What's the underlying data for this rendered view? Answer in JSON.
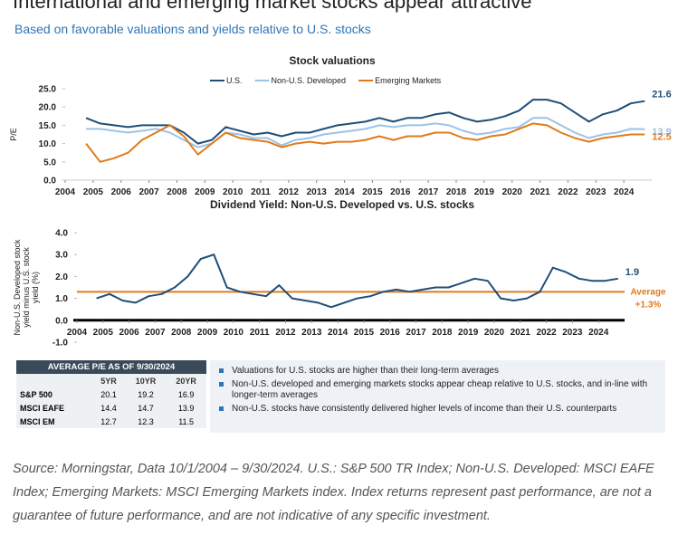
{
  "header": {
    "title": "International and emerging market stocks appear attractive",
    "subtitle": "Based on favorable valuations and yields relative to U.S. stocks"
  },
  "chart_data": [
    {
      "type": "line",
      "title": "Stock valuations",
      "ylabel": [
        "P/E"
      ],
      "legend": "top",
      "end_labels": true,
      "zero_line": false,
      "x": [
        2004.75,
        2005.25,
        2005.75,
        2006.25,
        2006.75,
        2007.25,
        2007.75,
        2008.25,
        2008.75,
        2009.25,
        2009.75,
        2010.25,
        2010.75,
        2011.25,
        2011.75,
        2012.25,
        2012.75,
        2013.25,
        2013.75,
        2014.25,
        2014.75,
        2015.25,
        2015.75,
        2016.25,
        2016.75,
        2017.25,
        2017.75,
        2018.25,
        2018.75,
        2019.25,
        2019.75,
        2020.25,
        2020.75,
        2021.25,
        2021.75,
        2022.25,
        2022.75,
        2023.25,
        2023.75,
        2024.25,
        2024.75
      ],
      "xlim": [
        2004,
        2025
      ],
      "xticks": [
        2004,
        2005,
        2006,
        2007,
        2008,
        2009,
        2010,
        2011,
        2012,
        2013,
        2014,
        2015,
        2016,
        2017,
        2018,
        2019,
        2020,
        2021,
        2022,
        2023,
        2024
      ],
      "ylim": [
        0,
        25
      ],
      "yticks": [
        {
          "value": 0,
          "label": "0.0"
        },
        {
          "value": 5,
          "label": "5.0"
        },
        {
          "value": 10,
          "label": "10.0"
        },
        {
          "value": 15,
          "label": "15.0"
        },
        {
          "value": 20,
          "label": "20.0"
        },
        {
          "value": 25,
          "label": "25.0"
        }
      ],
      "series": [
        {
          "name": "U.S.",
          "color": "#1f4e79",
          "values": [
            17,
            15.5,
            15,
            14.5,
            15,
            15,
            15,
            13,
            10,
            11,
            14.5,
            13.5,
            12.5,
            13,
            12,
            13,
            13,
            14,
            15,
            15.5,
            16,
            17,
            16,
            17,
            17,
            18,
            18.5,
            17,
            16,
            16.5,
            17.5,
            19,
            22,
            22,
            21,
            18.5,
            16,
            18,
            19,
            21,
            21.6
          ]
        },
        {
          "name": "Non-U.S. Developed",
          "color": "#9dc3e6",
          "values": [
            14,
            14,
            13.5,
            13,
            13.5,
            14,
            13,
            11,
            9,
            10,
            13,
            12.5,
            11.5,
            11.5,
            9.5,
            11,
            11.5,
            12.5,
            13,
            13.5,
            14,
            15,
            14.5,
            15,
            15,
            15.5,
            15,
            13.5,
            12.5,
            13,
            14,
            14.5,
            17,
            17,
            15,
            13,
            11.5,
            12.5,
            13,
            14,
            13.9
          ]
        },
        {
          "name": "Emerging Markets",
          "color": "#e07b1a",
          "values": [
            10,
            5,
            6,
            7.5,
            11,
            13,
            15,
            12,
            7,
            10,
            13,
            11.5,
            11,
            10.5,
            9,
            10,
            10.5,
            10,
            10.5,
            10.5,
            11,
            12,
            11,
            12,
            12,
            13,
            13,
            11.5,
            11,
            12,
            12.5,
            14,
            15.5,
            15,
            13,
            11.5,
            10.5,
            11.5,
            12,
            12.5,
            12.5
          ]
        }
      ]
    },
    {
      "type": "line",
      "title": "Dividend Yield: Non-U.S. Developed vs. U.S. stocks",
      "ylabel": [
        "Non-U.S. Developed stock",
        "yield minus U.S. stock",
        "yield (%)"
      ],
      "end_labels": true,
      "zero_line": true,
      "x": [
        2004.75,
        2005.25,
        2005.75,
        2006.25,
        2006.75,
        2007.25,
        2007.75,
        2008.25,
        2008.75,
        2009.25,
        2009.75,
        2010.25,
        2010.75,
        2011.25,
        2011.75,
        2012.25,
        2012.75,
        2013.25,
        2013.75,
        2014.25,
        2014.75,
        2015.25,
        2015.75,
        2016.25,
        2016.75,
        2017.25,
        2017.75,
        2018.25,
        2018.75,
        2019.25,
        2019.75,
        2020.25,
        2020.75,
        2021.25,
        2021.75,
        2022.25,
        2022.75,
        2023.25,
        2023.75,
        2024.25,
        2024.75
      ],
      "xlim": [
        2004,
        2025
      ],
      "xticks": [
        2004,
        2005,
        2006,
        2007,
        2008,
        2009,
        2010,
        2011,
        2012,
        2013,
        2014,
        2015,
        2016,
        2017,
        2018,
        2019,
        2020,
        2021,
        2022,
        2023,
        2024
      ],
      "ylim": [
        -1,
        4
      ],
      "yticks": [
        {
          "value": -1,
          "label": "-1.0"
        },
        {
          "value": 0,
          "label": "0.0"
        },
        {
          "value": 1,
          "label": "1.0"
        },
        {
          "value": 2,
          "label": "2.0"
        },
        {
          "value": 3,
          "label": "3.0"
        },
        {
          "value": 4,
          "label": "4.0"
        }
      ],
      "series": [
        {
          "color": "#1f4e79",
          "values": [
            1.0,
            1.2,
            0.9,
            0.8,
            1.1,
            1.2,
            1.5,
            2.0,
            2.8,
            3.0,
            1.5,
            1.3,
            1.2,
            1.1,
            1.6,
            1.0,
            0.9,
            0.8,
            0.6,
            0.8,
            1.0,
            1.1,
            1.3,
            1.4,
            1.3,
            1.4,
            1.5,
            1.5,
            1.7,
            1.9,
            1.8,
            1.0,
            0.9,
            1.0,
            1.3,
            2.4,
            2.2,
            1.9,
            1.8,
            1.8,
            1.9
          ]
        }
      ],
      "reference_line": {
        "value": 1.3,
        "label": "Average",
        "value_label": "+1.3%",
        "color": "#e07b1a"
      }
    }
  ],
  "table": {
    "title": "AVERAGE P/E  AS OF 9/30/2024",
    "columns": [
      "5YR",
      "10YR",
      "20YR"
    ],
    "rows": [
      {
        "label": "S&P 500",
        "values": [
          20.1,
          19.2,
          16.9
        ]
      },
      {
        "label": "MSCI EAFE",
        "values": [
          14.4,
          14.7,
          13.9
        ]
      },
      {
        "label": "MSCI EM",
        "values": [
          12.7,
          12.3,
          11.5
        ]
      }
    ]
  },
  "notes": [
    "Valuations for U.S. stocks are higher than their long-term averages",
    "Non-U.S. developed and emerging markets stocks appear cheap relative to U.S. stocks, and in-line with longer-term averages",
    "Non-U.S. stocks have consistently delivered higher levels of income than their U.S. counterparts"
  ],
  "source": "Source: Morningstar, Data 10/1/2004 – 9/30/2024. U.S.: S&P 500 TR Index; Non-U.S. Developed: MSCI EAFE Index; Emerging Markets: MSCI Emerging Markets index.  Index returns represent past performance, are not a guarantee of future performance, and are not indicative of any specific investment."
}
